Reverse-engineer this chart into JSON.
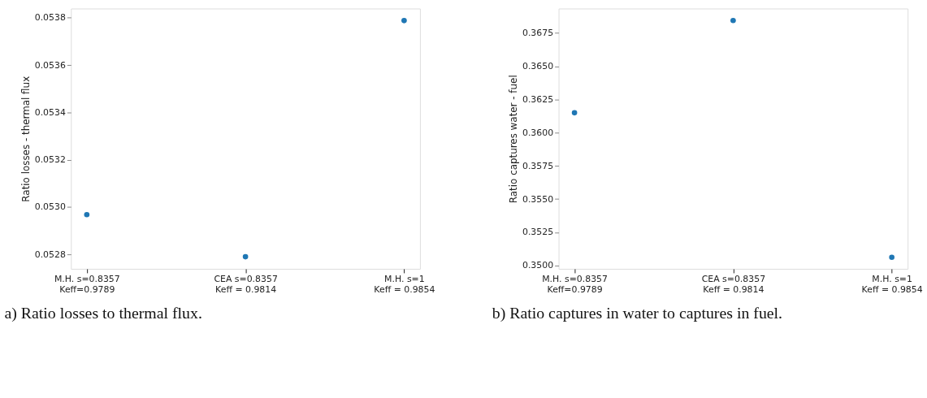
{
  "chart_data": [
    {
      "type": "scatter",
      "ylabel": "Ratio losses - thermal flux",
      "categories": [
        "M.H. s=0.8357\nKeff=0.9789",
        "CEA s=0.8357\nKeff = 0.9814",
        "M.H. s=1\nKeff = 0.9854"
      ],
      "series": [
        {
          "color": "#1f77b4",
          "values": [
            0.052968,
            0.05279,
            0.053788
          ]
        }
      ],
      "ylim": [
        0.052739,
        0.053839
      ],
      "yticks": [
        0.0528,
        {
          "value": 0.053,
          "label": "0.0530"
        },
        0.0532,
        0.0534,
        0.0536,
        0.0538
      ],
      "marker": "circle",
      "annotations": [
        "a)  Ratio losses to thermal flux."
      ]
    },
    {
      "type": "scatter",
      "ylabel": "Ratio captures water - fuel",
      "categories": [
        "M.H. s=0.8357\nKeff=0.9789",
        "CEA s=0.8357\nKeff = 0.9814",
        "M.H. s=1\nKeff = 0.9854"
      ],
      "series": [
        {
          "color": "#1f77b4",
          "values": [
            0.3615,
            0.36845,
            0.35062
          ]
        }
      ],
      "ylim": [
        0.34975,
        0.36935
      ],
      "yticks": [
        {
          "value": 0.35,
          "label": "0.3500"
        },
        0.3525,
        {
          "value": 0.355,
          "label": "0.3550"
        },
        0.3575,
        {
          "value": 0.36,
          "label": "0.3600"
        },
        0.3625,
        {
          "value": 0.365,
          "label": "0.3650"
        },
        0.3675
      ],
      "marker": "circle",
      "annotations": [
        "b)  Ratio captures in water to captures in fuel."
      ]
    }
  ]
}
